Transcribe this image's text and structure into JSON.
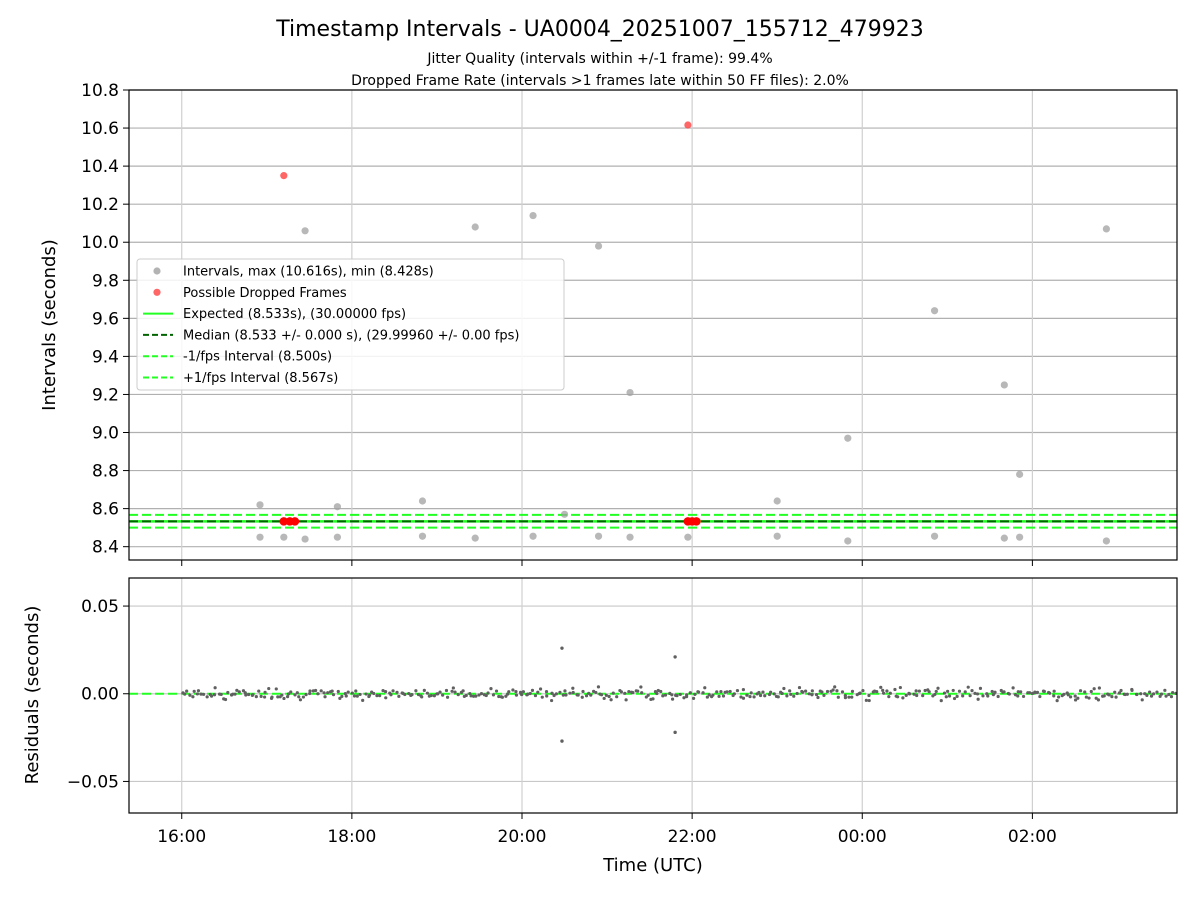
{
  "chart_data": {
    "type": "scatter",
    "title": "Timestamp Intervals - UA0004_20251007_155712_479923",
    "subtitles": [
      "Jitter Quality (intervals within +/-1 frame): 99.4%",
      "Dropped Frame Rate (intervals >1 frames late within 50 FF files): 2.0%"
    ],
    "xlabel": "Time (UTC)",
    "x_unit": "hours since 16:00 UTC",
    "xlim": [
      -0.62,
      11.7
    ],
    "x_ticks": [
      0,
      2,
      4,
      6,
      8,
      10
    ],
    "x_tick_labels": [
      "16:00",
      "18:00",
      "20:00",
      "22:00",
      "00:00",
      "02:00"
    ],
    "top": {
      "ylabel": "Intervals (seconds)",
      "ylim": [
        8.33,
        10.8
      ],
      "y_ticks": [
        8.4,
        8.6,
        8.8,
        9.0,
        9.2,
        9.4,
        9.6,
        9.8,
        10.0,
        10.2,
        10.4,
        10.6,
        10.8
      ],
      "y_tick_labels": [
        "8.4",
        "8.6",
        "8.8",
        "9.0",
        "9.2",
        "9.4",
        "9.6",
        "9.8",
        "10.0",
        "10.2",
        "10.4",
        "10.6",
        "10.8"
      ],
      "grid": true,
      "series": [
        {
          "name": "Intervals, max (10.616s), min (8.428s)",
          "color": "#a0a0a0",
          "points": [
            [
              0.92,
              8.62
            ],
            [
              0.92,
              8.45
            ],
            [
              1.2,
              8.45
            ],
            [
              1.45,
              10.06
            ],
            [
              1.45,
              8.44
            ],
            [
              1.83,
              8.61
            ],
            [
              1.83,
              8.45
            ],
            [
              2.83,
              8.64
            ],
            [
              2.83,
              8.455
            ],
            [
              3.45,
              10.08
            ],
            [
              3.45,
              8.445
            ],
            [
              4.13,
              10.14
            ],
            [
              4.13,
              8.455
            ],
            [
              4.5,
              8.57
            ],
            [
              4.9,
              9.98
            ],
            [
              4.9,
              8.455
            ],
            [
              5.27,
              9.21
            ],
            [
              5.27,
              8.45
            ],
            [
              5.95,
              8.45
            ],
            [
              7.0,
              8.64
            ],
            [
              7.0,
              8.455
            ],
            [
              7.83,
              8.97
            ],
            [
              7.83,
              8.43
            ],
            [
              8.85,
              9.64
            ],
            [
              8.85,
              8.455
            ],
            [
              9.67,
              9.25
            ],
            [
              9.67,
              8.445
            ],
            [
              9.85,
              8.78
            ],
            [
              9.85,
              8.45
            ],
            [
              10.87,
              10.07
            ],
            [
              10.87,
              8.43
            ]
          ]
        },
        {
          "name": "Possible Dropped Frames",
          "color": "#ff4040",
          "points": [
            [
              1.2,
              10.35
            ],
            [
              5.95,
              10.616
            ]
          ],
          "markers_at_median": [
            [
              1.2,
              8.533
            ],
            [
              1.27,
              8.533
            ],
            [
              1.33,
              8.533
            ],
            [
              5.95,
              8.533
            ],
            [
              6.0,
              8.533
            ],
            [
              6.05,
              8.533
            ]
          ]
        }
      ],
      "lines": [
        {
          "name": "Expected (8.533s), (30.00000 fps)",
          "y": 8.533,
          "color": "#22ff22",
          "style": "solid"
        },
        {
          "name": "Median (8.533 +/- 0.000 s), (29.99960 +/- 0.00 fps)",
          "y": 8.533,
          "color": "#006400",
          "style": "dashed"
        },
        {
          "name": "-1/fps Interval (8.500s)",
          "y": 8.5,
          "color": "#22ff22",
          "style": "dashed"
        },
        {
          "name": "+1/fps Interval (8.567s)",
          "y": 8.567,
          "color": "#22ff22",
          "style": "dashed"
        }
      ],
      "legend_location": "center-left"
    },
    "bottom": {
      "ylabel": "Residuals (seconds)",
      "ylim": [
        -0.068,
        0.066
      ],
      "y_ticks": [
        -0.05,
        0.0,
        0.05
      ],
      "y_tick_labels": [
        "−0.05",
        "0.00",
        "0.05"
      ],
      "grid": true,
      "baseline_y": 0.0,
      "residual_color": "#606060",
      "outliers": [
        [
          4.47,
          0.026
        ],
        [
          4.47,
          -0.027
        ],
        [
          5.8,
          0.021
        ],
        [
          5.8,
          -0.022
        ]
      ],
      "band_range": [
        0.0,
        11.7
      ],
      "band_amplitude": 0.004
    }
  }
}
